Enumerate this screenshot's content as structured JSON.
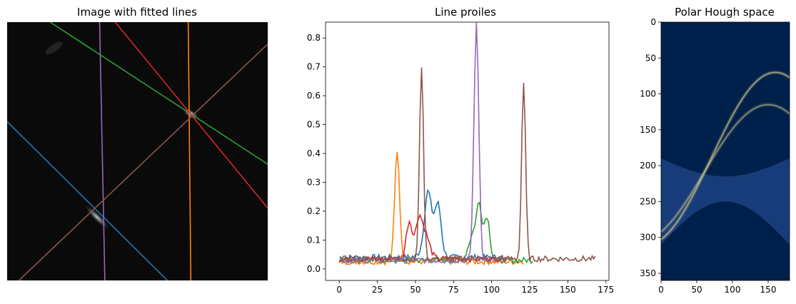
{
  "panels": {
    "image": {
      "title": "Image with fitted lines"
    },
    "profiles": {
      "title": "Line proiles"
    },
    "hough": {
      "title": "Polar Hough space"
    }
  },
  "colors": {
    "blue": "#1f77b4",
    "orange": "#ff7f0e",
    "green": "#2ca02c",
    "red": "#d62728",
    "purple": "#9467bd",
    "brown": "#8c564b",
    "hough_bg": "#00204c",
    "hough_mid": "#2a4c8e",
    "hough_high": "#d8cc8a"
  },
  "chart_data": [
    {
      "type": "image",
      "title": "Image with fitted lines",
      "xlim": [
        0,
        100
      ],
      "ylim": [
        0,
        100
      ],
      "spots": [
        {
          "cx": 70.5,
          "cy": 35.5,
          "intensity": 1.0
        },
        {
          "cx": 34.5,
          "cy": 75.5,
          "intensity": 0.8
        }
      ],
      "lines": [
        {
          "color": "blue",
          "p1": [
            0,
            38.5
          ],
          "p2": [
            61.5,
            100
          ]
        },
        {
          "color": "purple",
          "p1": [
            35.5,
            0
          ],
          "p2": [
            37.5,
            100
          ]
        },
        {
          "color": "orange",
          "p1": [
            69.5,
            0
          ],
          "p2": [
            70.5,
            100
          ]
        },
        {
          "color": "green",
          "p1": [
            16.5,
            0
          ],
          "p2": [
            100,
            55
          ]
        },
        {
          "color": "red",
          "p1": [
            41.5,
            0
          ],
          "p2": [
            100,
            72
          ]
        },
        {
          "color": "brown",
          "p1": [
            4.5,
            100
          ],
          "p2": [
            100,
            8.5
          ]
        }
      ]
    },
    {
      "type": "line",
      "title": "Line proiles",
      "xlim": [
        -9,
        177
      ],
      "ylim": [
        -0.04,
        0.855
      ],
      "xticks": [
        0,
        25,
        50,
        75,
        100,
        125,
        150,
        175
      ],
      "yticks": [
        0.0,
        0.1,
        0.2,
        0.3,
        0.4,
        0.5,
        0.6,
        0.7,
        0.8
      ],
      "ytick_labels": [
        "0.0",
        "0.1",
        "0.2",
        "0.3",
        "0.4",
        "0.5",
        "0.6",
        "0.7",
        "0.8"
      ],
      "grid": false,
      "series": [
        {
          "color": "blue",
          "length": 108,
          "base": 0.04,
          "peaks": [
            [
              58,
              0.14,
              2.0
            ],
            [
              65,
              0.14,
              2.0
            ],
            [
              60,
              0.1,
              4.0
            ]
          ]
        },
        {
          "color": "orange",
          "length": 122,
          "base": 0.025,
          "peaks": [
            [
              38,
              0.385,
              1.6
            ]
          ]
        },
        {
          "color": "green",
          "length": 128,
          "base": 0.03,
          "peaks": [
            [
              92,
              0.16,
              1.8
            ],
            [
              97,
              0.15,
              1.8
            ],
            [
              88,
              0.09,
              3.0
            ]
          ]
        },
        {
          "color": "red",
          "length": 110,
          "base": 0.035,
          "peaks": [
            [
              46,
              0.13,
              2.0
            ],
            [
              52,
              0.11,
              2.0
            ],
            [
              56,
              0.09,
              3.0
            ]
          ]
        },
        {
          "color": "purple",
          "length": 113,
          "base": 0.03,
          "peaks": [
            [
              90,
              0.815,
              1.6
            ]
          ]
        },
        {
          "color": "brown",
          "length": 169,
          "base": 0.035,
          "peaks": [
            [
              54,
              0.67,
              1.3
            ],
            [
              121,
              0.61,
              1.3
            ]
          ]
        }
      ]
    },
    {
      "type": "heatmap",
      "title": "Polar Hough space",
      "xlim": [
        0,
        180
      ],
      "ylim": [
        0,
        360
      ],
      "xticks": [
        0,
        50,
        100,
        150
      ],
      "yticks": [
        0,
        50,
        100,
        150,
        200,
        250,
        300,
        350
      ],
      "curves": [
        {
          "amplitude": 120,
          "phase": 160,
          "offset": 190,
          "weight": 1.0
        },
        {
          "amplitude": 95,
          "phase": 150,
          "offset": 210,
          "weight": 0.8
        }
      ]
    }
  ]
}
